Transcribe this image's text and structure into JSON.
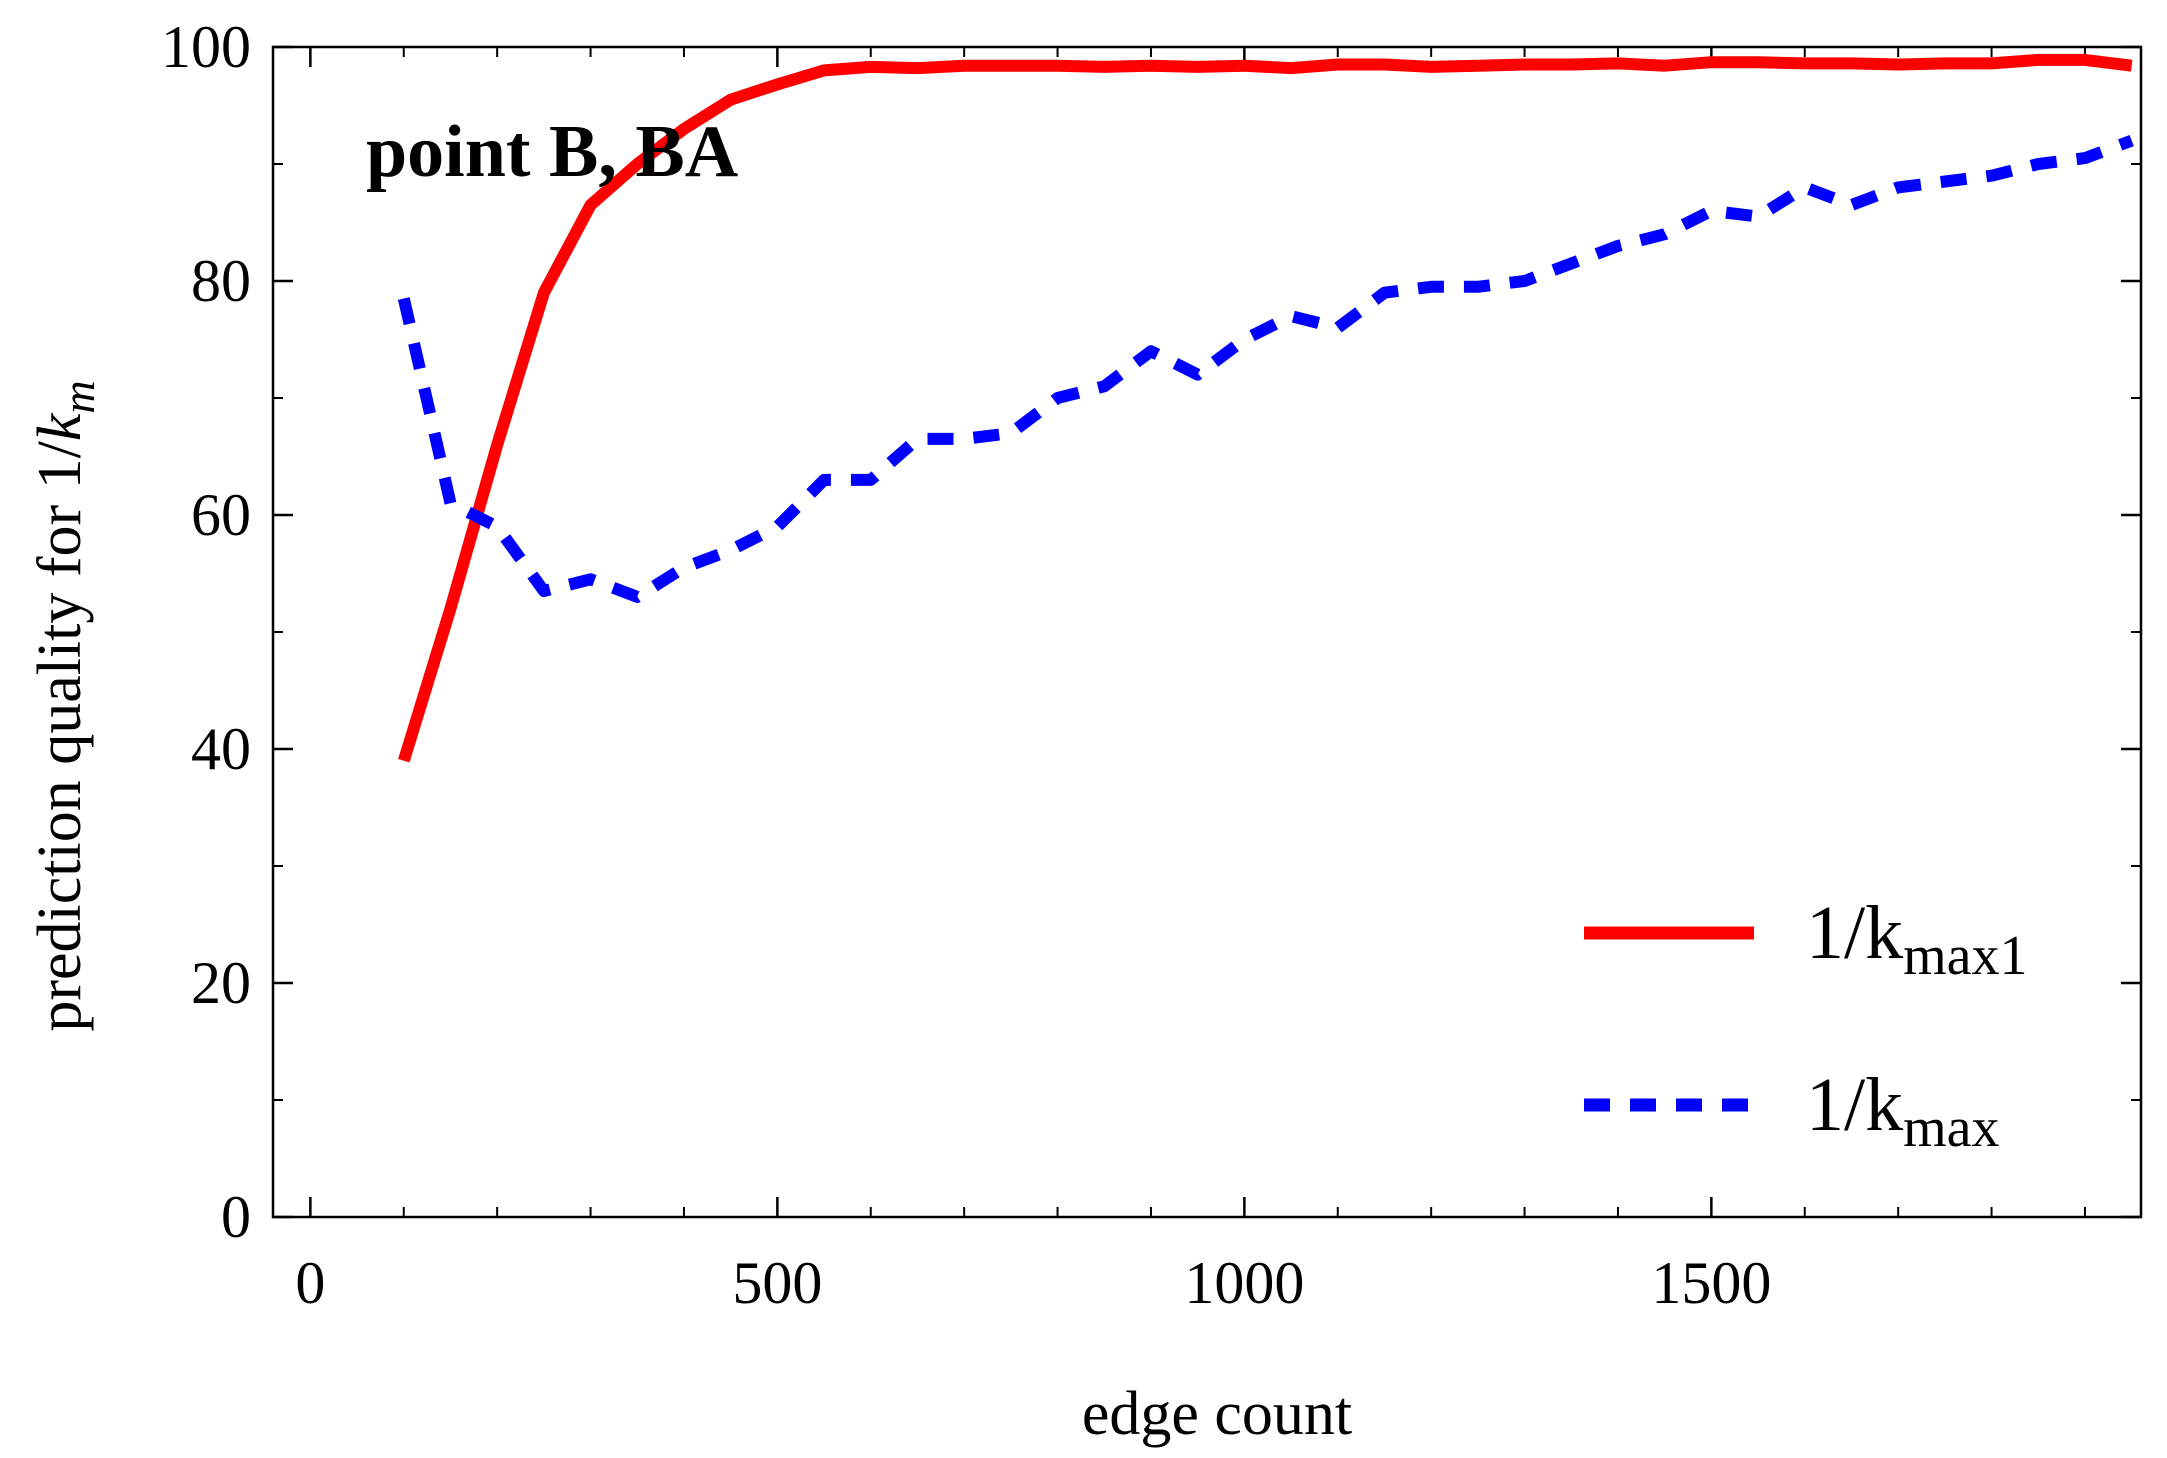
{
  "chart_data": {
    "type": "line",
    "xlabel": "edge count",
    "ylabel": {
      "prefix": "prediction quality for 1/",
      "var": "k",
      "sub": "m"
    },
    "annotation": "point B, BA",
    "xlim": [
      -40,
      1960
    ],
    "ylim": [
      0,
      100
    ],
    "x_ticks": [
      0,
      500,
      1000,
      1500
    ],
    "y_ticks": [
      0,
      20,
      40,
      60,
      80,
      100
    ],
    "x_minor_step": 100,
    "y_minor_step": 10,
    "grid": false,
    "legend_position": "bottom-right",
    "series": [
      {
        "name": "1/k",
        "name_main": "1/k",
        "name_sub": "max1",
        "color": "#ff0000",
        "dash": "solid",
        "x": [
          100,
          150,
          200,
          250,
          300,
          350,
          400,
          450,
          500,
          550,
          600,
          650,
          700,
          750,
          800,
          850,
          900,
          950,
          1000,
          1050,
          1100,
          1150,
          1200,
          1250,
          1300,
          1350,
          1400,
          1450,
          1500,
          1550,
          1600,
          1650,
          1700,
          1750,
          1800,
          1850,
          1900,
          1950
        ],
        "y": [
          39,
          52,
          66,
          79,
          86.5,
          90,
          93,
          95.5,
          96.8,
          98,
          98.3,
          98.2,
          98.4,
          98.4,
          98.4,
          98.3,
          98.4,
          98.3,
          98.4,
          98.2,
          98.5,
          98.5,
          98.3,
          98.4,
          98.5,
          98.5,
          98.6,
          98.4,
          98.7,
          98.7,
          98.6,
          98.6,
          98.5,
          98.6,
          98.6,
          98.9,
          98.9,
          98.4
        ]
      },
      {
        "name": "1/k",
        "name_main": "1/k",
        "name_sub": "max",
        "color": "#0000ff",
        "dash": "dashed",
        "x": [
          100,
          150,
          200,
          250,
          300,
          350,
          400,
          450,
          500,
          550,
          600,
          650,
          700,
          750,
          800,
          850,
          900,
          950,
          1000,
          1050,
          1100,
          1150,
          1200,
          1250,
          1300,
          1350,
          1400,
          1450,
          1500,
          1550,
          1600,
          1650,
          1700,
          1750,
          1800,
          1850,
          1900,
          1950
        ],
        "y": [
          78.5,
          61,
          59,
          53.5,
          54.5,
          53,
          55.5,
          57,
          59,
          63,
          63,
          66.5,
          66.5,
          67,
          70,
          71,
          74,
          72,
          75,
          77,
          76,
          79,
          79.5,
          79.5,
          80,
          81.5,
          83,
          84,
          86,
          85.5,
          88,
          86.5,
          88,
          88.5,
          89,
          90,
          90.5,
          92
        ]
      }
    ]
  }
}
